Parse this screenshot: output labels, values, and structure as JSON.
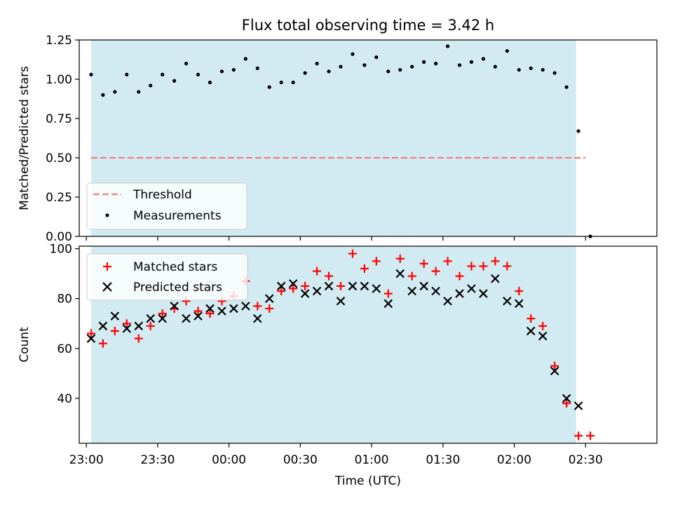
{
  "chart_data": [
    {
      "type": "scatter",
      "title": "Flux total observing time = 3.42 h",
      "ylabel": "Matched/Predicted stars",
      "xlabel": "",
      "ylim": [
        0,
        1.25
      ],
      "yticks": [
        "0.00",
        "0.25",
        "0.50",
        "0.75",
        "1.00",
        "1.25"
      ],
      "ytick_values": [
        0,
        0.25,
        0.5,
        0.75,
        1.0,
        1.25
      ],
      "xlim": [
        "22:57",
        "03:00"
      ],
      "grid": false,
      "legend_position": "lower-left",
      "shaded_region": {
        "x_start": "23:02",
        "x_end": "02:26",
        "color": "#add8e6"
      },
      "threshold": {
        "name": "Threshold",
        "value": 0.5,
        "x_start": "23:02",
        "x_end": "02:30",
        "color": "#f08080"
      },
      "series": [
        {
          "name": "Measurements",
          "color": "#000000",
          "x": [
            "23:02",
            "23:07",
            "23:12",
            "23:17",
            "23:22",
            "23:27",
            "23:32",
            "23:37",
            "23:42",
            "23:47",
            "23:52",
            "23:57",
            "00:02",
            "00:07",
            "00:12",
            "00:17",
            "00:22",
            "00:27",
            "00:32",
            "00:37",
            "00:42",
            "00:47",
            "00:52",
            "00:57",
            "01:02",
            "01:07",
            "01:12",
            "01:17",
            "01:22",
            "01:27",
            "01:32",
            "01:37",
            "01:42",
            "01:47",
            "01:52",
            "01:57",
            "02:02",
            "02:07",
            "02:12",
            "02:17",
            "02:22",
            "02:27",
            "02:32"
          ],
          "y": [
            1.03,
            0.9,
            0.92,
            1.03,
            0.92,
            0.96,
            1.03,
            0.99,
            1.1,
            1.03,
            0.98,
            1.05,
            1.06,
            1.13,
            1.07,
            0.95,
            0.98,
            0.98,
            1.04,
            1.1,
            1.05,
            1.08,
            1.16,
            1.09,
            1.14,
            1.05,
            1.06,
            1.08,
            1.11,
            1.1,
            1.21,
            1.09,
            1.11,
            1.13,
            1.08,
            1.18,
            1.06,
            1.07,
            1.06,
            1.04,
            0.95,
            0.67,
            0.0
          ]
        }
      ]
    },
    {
      "type": "scatter",
      "title": "",
      "ylabel": "Count",
      "xlabel": "Time (UTC)",
      "ylim": [
        22,
        101
      ],
      "yticks": [
        "40",
        "60",
        "80",
        "100"
      ],
      "ytick_values": [
        40,
        60,
        80,
        100
      ],
      "xlim": [
        "22:57",
        "03:00"
      ],
      "xticks": [
        "23:00",
        "23:30",
        "00:00",
        "00:30",
        "01:00",
        "01:30",
        "02:00",
        "02:30"
      ],
      "grid": false,
      "legend_position": "upper-left",
      "shaded_region": {
        "x_start": "23:02",
        "x_end": "02:26",
        "color": "#add8e6"
      },
      "series": [
        {
          "name": "Matched stars",
          "marker": "plus",
          "color": "#ff0000",
          "x": [
            "23:02",
            "23:07",
            "23:12",
            "23:17",
            "23:22",
            "23:27",
            "23:32",
            "23:37",
            "23:42",
            "23:47",
            "23:52",
            "23:57",
            "00:02",
            "00:07",
            "00:12",
            "00:17",
            "00:22",
            "00:27",
            "00:32",
            "00:37",
            "00:42",
            "00:47",
            "00:52",
            "00:57",
            "01:02",
            "01:07",
            "01:12",
            "01:17",
            "01:22",
            "01:27",
            "01:32",
            "01:37",
            "01:42",
            "01:47",
            "01:52",
            "01:57",
            "02:02",
            "02:07",
            "02:12",
            "02:17",
            "02:22",
            "02:27",
            "02:32"
          ],
          "y": [
            66,
            62,
            67,
            70,
            64,
            69,
            74,
            76,
            79,
            75,
            74,
            79,
            81,
            87,
            77,
            76,
            83,
            84,
            85,
            91,
            89,
            85,
            98,
            92,
            95,
            82,
            96,
            89,
            94,
            91,
            95,
            89,
            93,
            93,
            95,
            93,
            83,
            72,
            69,
            53,
            38,
            25,
            25
          ]
        },
        {
          "name": "Predicted stars",
          "marker": "x",
          "color": "#000000",
          "x": [
            "23:02",
            "23:07",
            "23:12",
            "23:17",
            "23:22",
            "23:27",
            "23:32",
            "23:37",
            "23:42",
            "23:47",
            "23:52",
            "23:57",
            "00:02",
            "00:07",
            "00:12",
            "00:17",
            "00:22",
            "00:27",
            "00:32",
            "00:37",
            "00:42",
            "00:47",
            "00:52",
            "00:57",
            "01:02",
            "01:07",
            "01:12",
            "01:17",
            "01:22",
            "01:27",
            "01:32",
            "01:37",
            "01:42",
            "01:47",
            "01:52",
            "01:57",
            "02:02",
            "02:07",
            "02:12",
            "02:17",
            "02:22",
            "02:27"
          ],
          "y": [
            64,
            69,
            73,
            68,
            69,
            72,
            72,
            77,
            72,
            73,
            76,
            75,
            76,
            77,
            72,
            80,
            85,
            86,
            82,
            83,
            85,
            79,
            85,
            85,
            84,
            78,
            90,
            83,
            85,
            83,
            79,
            82,
            84,
            82,
            88,
            79,
            78,
            67,
            65,
            51,
            40,
            37
          ]
        }
      ]
    }
  ]
}
